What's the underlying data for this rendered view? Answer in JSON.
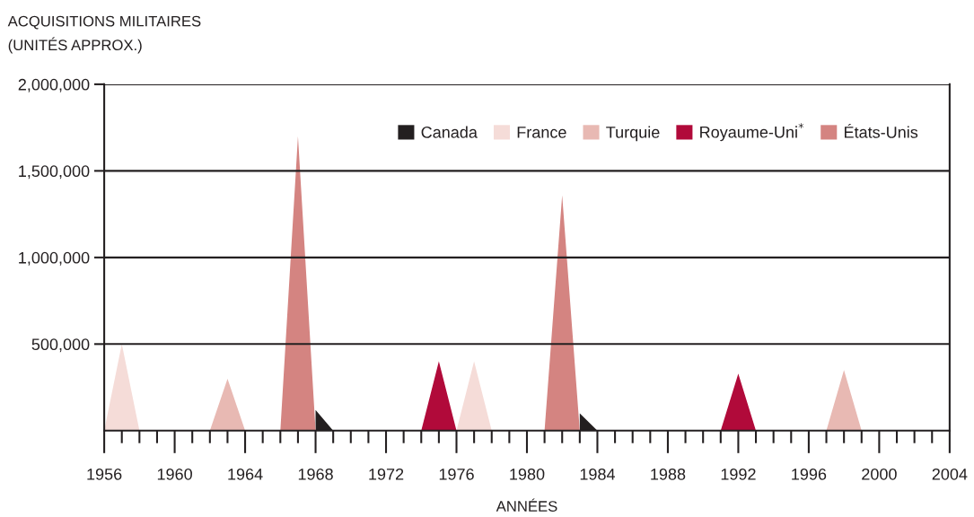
{
  "chart_data": {
    "type": "area",
    "ylabel": "ACQUISITIONS MILITAIRES\n(UNITÉS APPROX.)",
    "xlabel": "ANNÉES",
    "series": [
      {
        "name": "Canada",
        "color": "#231f20",
        "x": [
          1968,
          1968,
          1969,
          1983,
          1983,
          1984
        ],
        "values": [
          0,
          120000,
          0,
          0,
          100000,
          0
        ]
      },
      {
        "name": "France",
        "color": "#f5dcd8",
        "x": [
          1956,
          1957,
          1958,
          1976,
          1977,
          1978
        ],
        "values": [
          0,
          500000,
          0,
          0,
          400000,
          0
        ]
      },
      {
        "name": "Turquie",
        "color": "#e8b9b3",
        "x": [
          1962,
          1963,
          1964,
          1997,
          1998,
          1999
        ],
        "values": [
          0,
          300000,
          0,
          0,
          350000,
          0
        ]
      },
      {
        "name": "Royaume-Uni$^{*}$",
        "color": "#b10a3a",
        "x": [
          1974,
          1975,
          1976,
          1991,
          1992,
          1993
        ],
        "values": [
          0,
          400000,
          0,
          0,
          330000,
          0
        ]
      },
      {
        "name": "États-Unis",
        "color": "#d48481",
        "x": [
          1966,
          1967,
          1968,
          1981,
          1982,
          1983
        ],
        "values": [
          0,
          1700000,
          0,
          0,
          1360000,
          0
        ]
      }
    ],
    "xlim": [
      1956,
      2004
    ],
    "xticks": [
      1956,
      {
        "value": 1957,
        "label": null
      },
      {
        "value": 1958,
        "label": null
      },
      {
        "value": 1959,
        "label": null
      },
      1960,
      {
        "value": 1961,
        "label": null
      },
      {
        "value": 1962,
        "label": null
      },
      {
        "value": 1963,
        "label": null
      },
      1964,
      {
        "value": 1965,
        "label": null
      },
      {
        "value": 1966,
        "label": null
      },
      {
        "value": 1967,
        "label": null
      },
      1968,
      {
        "value": 1969,
        "label": null
      },
      {
        "value": 1970,
        "label": null
      },
      {
        "value": 1971,
        "label": null
      },
      1972,
      {
        "value": 1973,
        "label": null
      },
      {
        "value": 1974,
        "label": null
      },
      {
        "value": 1975,
        "label": null
      },
      1976,
      {
        "value": 1977,
        "label": null
      },
      {
        "value": 1978,
        "label": null
      },
      {
        "value": 1979,
        "label": null
      },
      1980,
      {
        "value": 1981,
        "label": null
      },
      {
        "value": 1982,
        "label": null
      },
      {
        "value": 1983,
        "label": null
      },
      1984,
      {
        "value": 1985,
        "label": null
      },
      {
        "value": 1986,
        "label": null
      },
      {
        "value": 1987,
        "label": null
      },
      1988,
      {
        "value": 1989,
        "label": null
      },
      {
        "value": 1990,
        "label": null
      },
      {
        "value": 1991,
        "label": null
      },
      1992,
      {
        "value": 1993,
        "label": null
      },
      {
        "value": 1994,
        "label": null
      },
      {
        "value": 1995,
        "label": null
      },
      1996,
      {
        "value": 1997,
        "label": null
      },
      {
        "value": 1998,
        "label": null
      },
      {
        "value": 1999,
        "label": null
      },
      2000,
      {
        "value": 2001,
        "label": null
      },
      {
        "value": 2002,
        "label": null
      },
      {
        "value": 2003,
        "label": null
      },
      2004
    ],
    "ylim": [
      0,
      2000000
    ],
    "yticks": [
      {
        "value": 500000,
        "label": "500,000"
      },
      {
        "value": 1000000,
        "label": "1,000,000"
      },
      {
        "value": 1500000,
        "label": "1,500,000"
      },
      {
        "value": 2000000,
        "label": "2,000,000"
      }
    ],
    "grid": "y",
    "legend": "top right"
  }
}
